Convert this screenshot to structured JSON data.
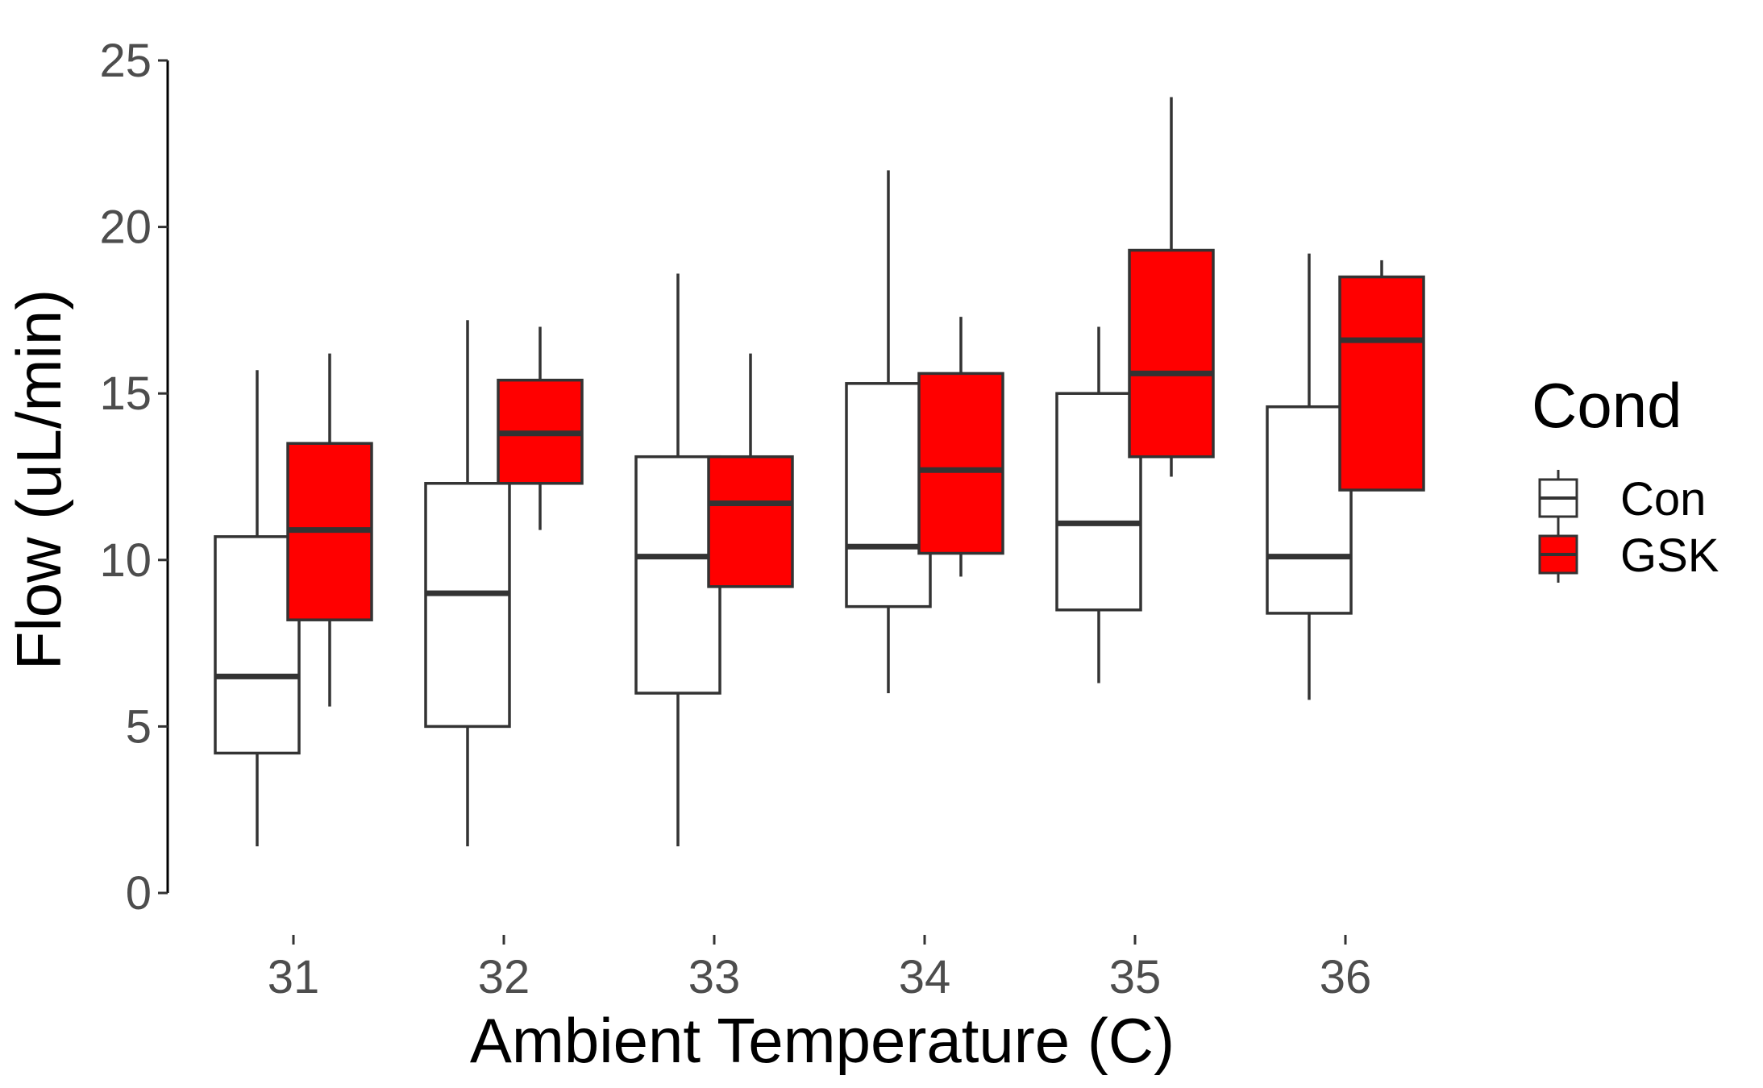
{
  "chart_data": {
    "type": "boxplot",
    "xlabel": "Ambient Temperature (C)",
    "ylabel": "Flow (uL/min)",
    "ylim": [
      0,
      25
    ],
    "yticks": [
      "0",
      "5",
      "10",
      "15",
      "20",
      "25"
    ],
    "categories": [
      "31",
      "32",
      "33",
      "34",
      "35",
      "36"
    ],
    "legend_title": "Cond",
    "legend_position": "right",
    "grid": false,
    "series": [
      {
        "name": "Con",
        "fill": "#ffffff",
        "boxes": [
          {
            "min": 1.4,
            "q1": 4.2,
            "median": 6.5,
            "q3": 10.7,
            "max": 15.7
          },
          {
            "min": 1.4,
            "q1": 5.0,
            "median": 9.0,
            "q3": 12.3,
            "max": 17.2
          },
          {
            "min": 1.4,
            "q1": 6.0,
            "median": 10.1,
            "q3": 13.1,
            "max": 18.6
          },
          {
            "min": 6.0,
            "q1": 8.6,
            "median": 10.4,
            "q3": 15.3,
            "max": 21.7
          },
          {
            "min": 6.3,
            "q1": 8.5,
            "median": 11.1,
            "q3": 15.0,
            "max": 17.0
          },
          {
            "min": 5.8,
            "q1": 8.4,
            "median": 10.1,
            "q3": 14.6,
            "max": 19.2
          }
        ]
      },
      {
        "name": "GSK",
        "fill": "#ff0000",
        "boxes": [
          {
            "min": 5.6,
            "q1": 8.2,
            "median": 10.9,
            "q3": 13.5,
            "max": 16.2
          },
          {
            "min": 10.9,
            "q1": 12.3,
            "median": 13.8,
            "q3": 15.4,
            "max": 17.0
          },
          {
            "min": 9.2,
            "q1": 9.2,
            "median": 11.7,
            "q3": 13.1,
            "max": 16.2
          },
          {
            "min": 9.5,
            "q1": 10.2,
            "median": 12.7,
            "q3": 15.6,
            "max": 17.3
          },
          {
            "min": 12.5,
            "q1": 13.1,
            "median": 15.6,
            "q3": 19.3,
            "max": 23.9
          },
          {
            "min": 12.1,
            "q1": 12.1,
            "median": 16.6,
            "q3": 18.5,
            "max": 19.0
          }
        ]
      }
    ]
  }
}
